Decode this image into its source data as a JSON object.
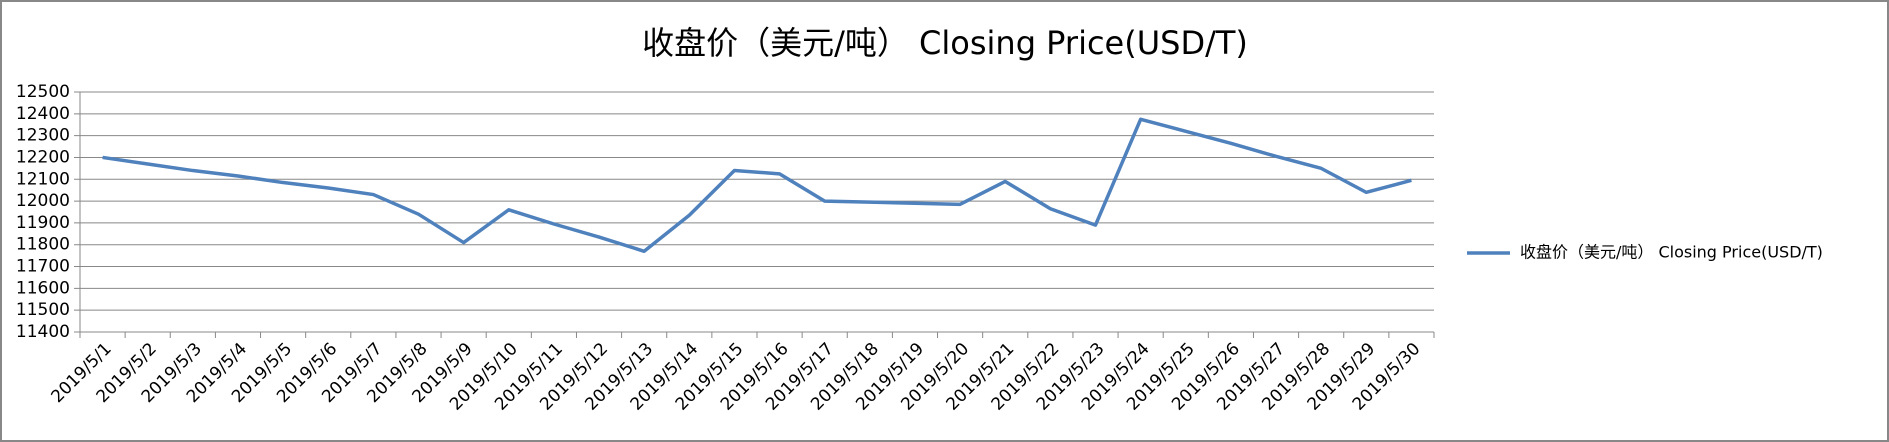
{
  "chart_data": {
    "type": "line",
    "title": "收盘价（美元/吨） Closing Price(USD/T)",
    "categories": [
      "2019/5/1",
      "2019/5/2",
      "2019/5/3",
      "2019/5/4",
      "2019/5/5",
      "2019/5/6",
      "2019/5/7",
      "2019/5/8",
      "2019/5/9",
      "2019/5/10",
      "2019/5/11",
      "2019/5/12",
      "2019/5/13",
      "2019/5/14",
      "2019/5/15",
      "2019/5/16",
      "2019/5/17",
      "2019/5/18",
      "2019/5/19",
      "2019/5/20",
      "2019/5/21",
      "2019/5/22",
      "2019/5/23",
      "2019/5/24",
      "2019/5/25",
      "2019/5/26",
      "2019/5/27",
      "2019/5/28",
      "2019/5/29",
      "2019/5/30"
    ],
    "series": [
      {
        "name": "收盘价（美元/吨） Closing Price(USD/T)",
        "color": "#4f81bd",
        "values": [
          12200,
          12170,
          12140,
          12115,
          12085,
          12060,
          12030,
          11940,
          11810,
          11960,
          11895,
          11835,
          11770,
          11935,
          12140,
          12125,
          12000,
          11995,
          11990,
          11985,
          12090,
          11965,
          11890,
          12375,
          12320,
          12265,
          12205,
          12150,
          12040,
          12095
        ]
      }
    ],
    "ylim": [
      11400,
      12500
    ],
    "yticks": [
      11400,
      11500,
      11600,
      11700,
      11800,
      11900,
      12000,
      12100,
      12200,
      12300,
      12400,
      12500
    ],
    "grid": true,
    "legend": "right"
  }
}
